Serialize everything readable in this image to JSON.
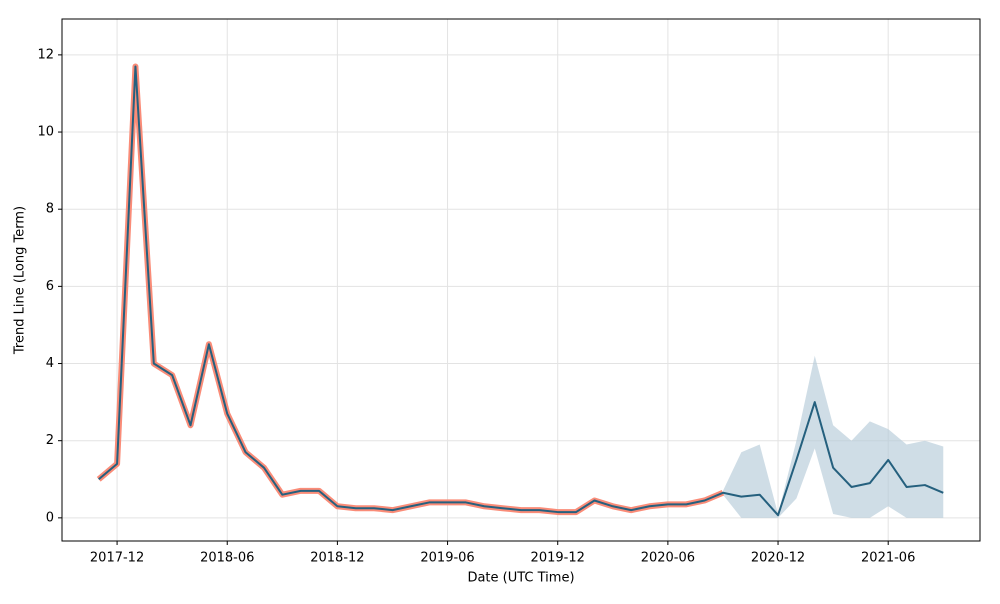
{
  "chart_data": {
    "type": "line",
    "xlabel": "Date (UTC Time)",
    "ylabel": "Trend Line (Long Term)",
    "x": [
      "2017-11",
      "2017-12",
      "2018-01",
      "2018-02",
      "2018-03",
      "2018-04",
      "2018-05",
      "2018-06",
      "2018-07",
      "2018-08",
      "2018-09",
      "2018-10",
      "2018-11",
      "2018-12",
      "2019-01",
      "2019-02",
      "2019-03",
      "2019-04",
      "2019-05",
      "2019-06",
      "2019-07",
      "2019-08",
      "2019-09",
      "2019-10",
      "2019-11",
      "2019-12",
      "2020-01",
      "2020-02",
      "2020-03",
      "2020-04",
      "2020-05",
      "2020-06",
      "2020-07",
      "2020-08",
      "2020-09",
      "2020-10",
      "2020-11",
      "2020-12",
      "2021-01",
      "2021-02",
      "2021-03",
      "2021-04",
      "2021-05",
      "2021-06",
      "2021-07",
      "2021-08",
      "2021-09"
    ],
    "series": [
      {
        "color": "#fa8c78",
        "width": 6,
        "values": [
          1.0,
          1.4,
          11.7,
          4.0,
          3.7,
          2.4,
          4.5,
          2.7,
          1.7,
          1.3,
          0.6,
          0.7,
          0.7,
          0.3,
          0.25,
          0.25,
          0.2,
          0.3,
          0.4,
          0.4,
          0.4,
          0.3,
          0.25,
          0.2,
          0.2,
          0.15,
          0.15,
          0.45,
          0.3,
          0.2,
          0.3,
          0.35,
          0.35,
          0.45,
          0.65,
          null,
          null,
          null,
          null,
          null,
          null,
          null,
          null,
          null,
          null,
          null,
          null
        ]
      },
      {
        "color": "#25607e",
        "width": 2,
        "values": [
          1.0,
          1.4,
          11.7,
          4.0,
          3.7,
          2.4,
          4.5,
          2.7,
          1.7,
          1.3,
          0.6,
          0.7,
          0.7,
          0.3,
          0.25,
          0.25,
          0.2,
          0.3,
          0.4,
          0.4,
          0.4,
          0.3,
          0.25,
          0.2,
          0.2,
          0.15,
          0.15,
          0.45,
          0.3,
          0.2,
          0.3,
          0.35,
          0.35,
          0.45,
          0.65,
          0.55,
          0.6,
          0.07,
          1.5,
          3.0,
          1.3,
          0.8,
          0.9,
          1.5,
          0.8,
          0.85,
          0.65
        ]
      }
    ],
    "band": {
      "color": "#b6cbd8",
      "lower": [
        null,
        null,
        null,
        null,
        null,
        null,
        null,
        null,
        null,
        null,
        null,
        null,
        null,
        null,
        null,
        null,
        null,
        null,
        null,
        null,
        null,
        null,
        null,
        null,
        null,
        null,
        null,
        null,
        null,
        null,
        null,
        null,
        null,
        null,
        0.6,
        0,
        0,
        0,
        0.5,
        1.8,
        0.1,
        0,
        0,
        0.3,
        0,
        0,
        0
      ],
      "upper": [
        null,
        null,
        null,
        null,
        null,
        null,
        null,
        null,
        null,
        null,
        null,
        null,
        null,
        null,
        null,
        null,
        null,
        null,
        null,
        null,
        null,
        null,
        null,
        null,
        null,
        null,
        null,
        null,
        null,
        null,
        null,
        null,
        null,
        null,
        0.7,
        1.7,
        1.9,
        0.1,
        2.0,
        4.2,
        2.4,
        2.0,
        2.5,
        2.3,
        1.9,
        2.0,
        1.85
      ]
    },
    "xlim": [
      "2017-09",
      "2021-11"
    ],
    "ylim": [
      -0.6,
      12.93
    ],
    "xticks": [
      "2017-12",
      "2018-06",
      "2018-12",
      "2019-06",
      "2019-12",
      "2020-06",
      "2020-12",
      "2021-06"
    ],
    "yticks": [
      0,
      2,
      4,
      6,
      8,
      10,
      12
    ],
    "grid": true
  }
}
